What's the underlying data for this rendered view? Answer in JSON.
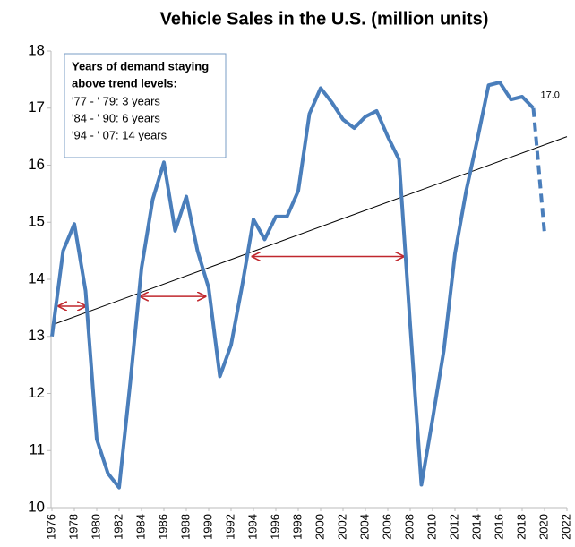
{
  "chart_data": {
    "type": "line",
    "title": "Vehicle Sales in the U.S. (million units)",
    "x": [
      1976,
      1977,
      1978,
      1979,
      1980,
      1981,
      1982,
      1983,
      1984,
      1985,
      1986,
      1987,
      1988,
      1989,
      1990,
      1991,
      1992,
      1993,
      1994,
      1995,
      1996,
      1997,
      1998,
      1999,
      2000,
      2001,
      2002,
      2003,
      2004,
      2005,
      2006,
      2007,
      2008,
      2009,
      2010,
      2011,
      2012,
      2013,
      2014,
      2015,
      2016,
      2017,
      2018,
      2019,
      2020
    ],
    "series": [
      {
        "color": "#4a7ebb",
        "dashed": false,
        "values": [
          13.0,
          14.5,
          14.97,
          13.8,
          11.2,
          10.6,
          10.35,
          12.2,
          14.2,
          15.4,
          16.05,
          14.85,
          15.45,
          14.5,
          13.85,
          12.3,
          12.85,
          13.9,
          15.05,
          14.7,
          15.1,
          15.1,
          15.55,
          16.9,
          17.35,
          17.1,
          16.8,
          16.65,
          16.85,
          16.95,
          16.5,
          16.1,
          13.2,
          10.4,
          11.55,
          12.75,
          14.45,
          15.55,
          16.45,
          17.4,
          17.45,
          17.15,
          17.2,
          17.0,
          null
        ],
        "value_labels": [
          null,
          null,
          null,
          null,
          null,
          null,
          null,
          null,
          null,
          null,
          null,
          null,
          null,
          null,
          null,
          null,
          null,
          null,
          null,
          null,
          null,
          null,
          null,
          null,
          null,
          null,
          null,
          null,
          null,
          null,
          null,
          null,
          null,
          null,
          null,
          null,
          null,
          null,
          null,
          null,
          null,
          null,
          null,
          "17.0",
          null
        ]
      },
      {
        "color": "#4a7ebb",
        "dashed": true,
        "values": [
          null,
          null,
          null,
          null,
          null,
          null,
          null,
          null,
          null,
          null,
          null,
          null,
          null,
          null,
          null,
          null,
          null,
          null,
          null,
          null,
          null,
          null,
          null,
          null,
          null,
          null,
          null,
          null,
          null,
          null,
          null,
          null,
          null,
          null,
          null,
          null,
          null,
          null,
          null,
          null,
          null,
          null,
          null,
          17.0,
          14.8
        ]
      }
    ],
    "trend": {
      "x": [
        1976,
        2022
      ],
      "values": [
        13.2,
        16.5
      ],
      "color": "#000000"
    },
    "arrows": [
      {
        "x1": 1976.6,
        "x2": 1979,
        "y": 13.53
      },
      {
        "x1": 1983.9,
        "x2": 1989.7,
        "y": 13.7
      },
      {
        "x1": 1993.9,
        "x2": 2007.4,
        "y": 14.4
      }
    ],
    "arrow_color": "#c0272d",
    "annotation": {
      "heading": [
        "Years of demand staying",
        "above trend levels:"
      ],
      "lines": [
        "'77 - ' 79:  3 years",
        "'84 - ' 90:  6 years",
        "'94 - ' 07: 14 years"
      ]
    },
    "xlim": [
      1976,
      2022
    ],
    "xticks": [
      1976,
      1978,
      1980,
      1982,
      1984,
      1986,
      1988,
      1990,
      1992,
      1994,
      1996,
      1998,
      2000,
      2002,
      2004,
      2006,
      2008,
      2010,
      2012,
      2014,
      2016,
      2018,
      2020,
      2022
    ],
    "ylim": [
      10,
      18
    ],
    "yticks": [
      10,
      11,
      12,
      13,
      14,
      15,
      16,
      17,
      18
    ],
    "grid": false
  }
}
